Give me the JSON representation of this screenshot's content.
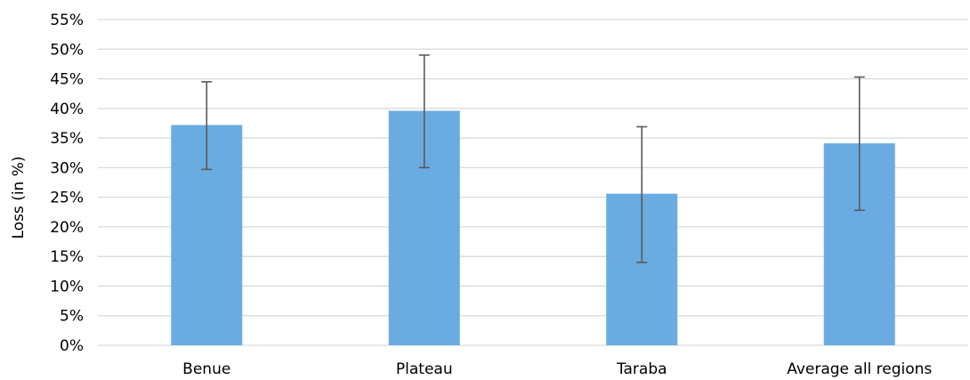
{
  "chart_data": {
    "type": "bar",
    "title": "",
    "xlabel": "",
    "ylabel": "Loss (in %)",
    "categories": [
      "Benue",
      "Plateau",
      "Taraba",
      "Average all regions"
    ],
    "values": [
      37.2,
      39.6,
      25.6,
      34.1
    ],
    "error_low": [
      29.7,
      30.0,
      14.0,
      22.8
    ],
    "error_high": [
      44.5,
      49.0,
      36.9,
      45.3
    ],
    "ylim": [
      0,
      55
    ],
    "y_ticks": [
      0,
      5,
      10,
      15,
      20,
      25,
      30,
      35,
      40,
      45,
      50,
      55
    ],
    "y_tick_labels": [
      "0%",
      "5%",
      "10%",
      "15%",
      "20%",
      "25%",
      "30%",
      "35%",
      "40%",
      "45%",
      "50%",
      "55%"
    ],
    "grid": true,
    "legend": "none",
    "bar_color": "#6aace2",
    "error_bar_color": "#595959"
  }
}
